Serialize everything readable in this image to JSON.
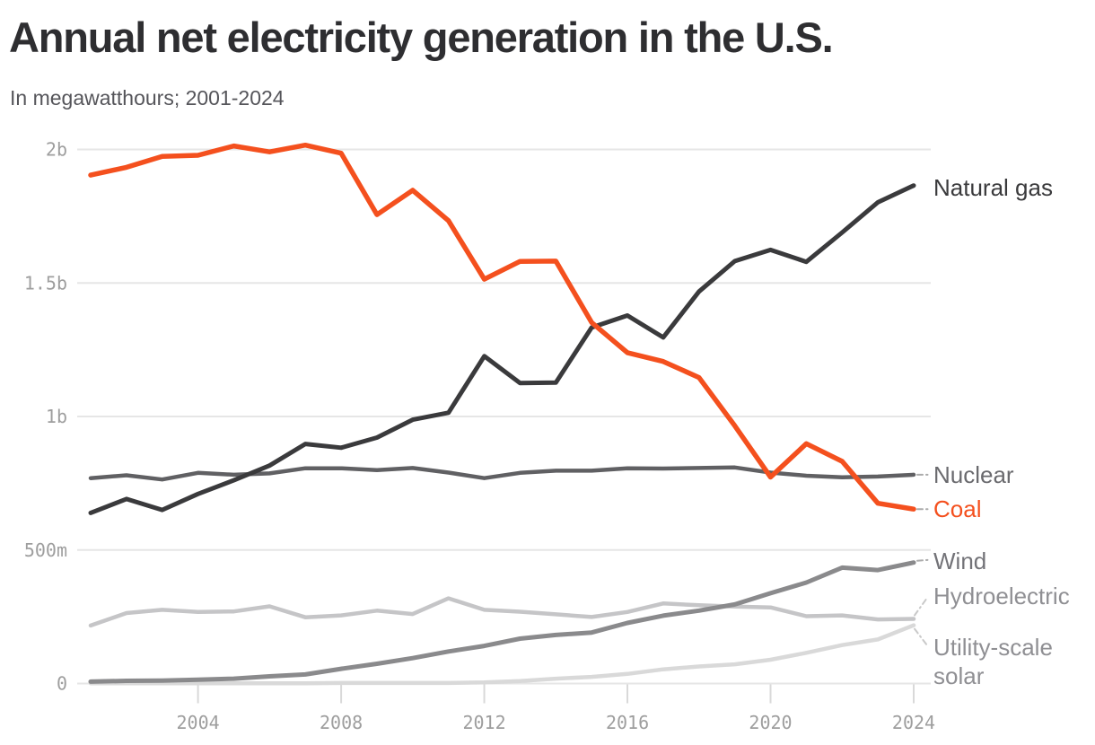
{
  "header": {
    "title": "Annual net electricity generation in the U.S.",
    "subtitle": "In megawatthours; 2001-2024"
  },
  "chart_data": {
    "type": "line",
    "title": "Annual net electricity generation in the U.S.",
    "subtitle": "In megawatthours; 2001-2024",
    "value_unit": "million MWh",
    "x_label": "",
    "y_label": "",
    "grid": "horizontal-only",
    "legend_position": "right-edge-direct-labels",
    "ylim_million_mwh": [
      0,
      2100
    ],
    "x": [
      2001,
      2002,
      2003,
      2004,
      2005,
      2006,
      2007,
      2008,
      2009,
      2010,
      2011,
      2012,
      2013,
      2014,
      2015,
      2016,
      2017,
      2018,
      2019,
      2020,
      2021,
      2022,
      2023,
      2024
    ],
    "x_ticks": [
      2004,
      2008,
      2012,
      2016,
      2020,
      2024
    ],
    "y_ticks": [
      {
        "label": "2b",
        "value_million": 2000
      },
      {
        "label": "1.5b",
        "value_million": 1500
      },
      {
        "label": "1b",
        "value_million": 1000
      },
      {
        "label": "500m",
        "value_million": 500
      },
      {
        "label": "0",
        "value_million": 0
      }
    ],
    "series": [
      {
        "name": "Natural gas",
        "color": "#3a3a3c",
        "label_color": "#3a3a3c",
        "values_million_mwh": [
          639,
          691,
          650,
          710,
          761,
          816,
          897,
          883,
          921,
          988,
          1014,
          1226,
          1125,
          1127,
          1333,
          1378,
          1296,
          1468,
          1582,
          1624,
          1579,
          1689,
          1802,
          1865
        ]
      },
      {
        "name": "Coal",
        "color": "#f4501e",
        "label_color": "#f4501e",
        "values_million_mwh": [
          1904,
          1933,
          1974,
          1978,
          2013,
          1991,
          2016,
          1986,
          1756,
          1847,
          1733,
          1514,
          1581,
          1582,
          1352,
          1239,
          1206,
          1146,
          965,
          773,
          898,
          832,
          675,
          653
        ]
      },
      {
        "name": "Nuclear",
        "color": "#606063",
        "label_color": "#6a6a6e",
        "values_million_mwh": [
          769,
          780,
          764,
          789,
          782,
          787,
          806,
          806,
          799,
          807,
          790,
          769,
          789,
          797,
          797,
          806,
          805,
          807,
          809,
          790,
          778,
          772,
          775,
          782
        ]
      },
      {
        "name": "Wind",
        "color": "#8a8a8c",
        "label_color": "#737378",
        "values_million_mwh": [
          7,
          10,
          11,
          14,
          18,
          27,
          34,
          55,
          74,
          95,
          120,
          141,
          168,
          182,
          191,
          227,
          254,
          273,
          296,
          338,
          378,
          434,
          425,
          453
        ]
      },
      {
        "name": "Hydroelectric",
        "color": "#c5c5c7",
        "label_color": "#8f8f93",
        "values_million_mwh": [
          217,
          264,
          276,
          268,
          270,
          289,
          248,
          255,
          273,
          260,
          319,
          276,
          269,
          259,
          249,
          268,
          300,
          293,
          288,
          285,
          252,
          255,
          240,
          242
        ]
      },
      {
        "name": "Utility-scale solar",
        "color": "#d9d9d9",
        "label_color": "#8f8f93",
        "values_million_mwh": [
          1,
          1,
          1,
          1,
          1,
          1,
          1,
          2,
          2,
          2,
          2,
          4,
          9,
          18,
          25,
          36,
          53,
          64,
          72,
          89,
          115,
          144,
          165,
          218
        ]
      }
    ],
    "colors": {
      "background": "#ffffff",
      "gridline": "#e6e6e6",
      "axis_tick": "#d9d9d9",
      "axis_text": "#9e9e9e",
      "title_text": "#2e2e31",
      "subtitle_text": "#55555a",
      "leader_dash": "#ababab",
      "leader_dash_light": "#c9c9c9"
    }
  }
}
